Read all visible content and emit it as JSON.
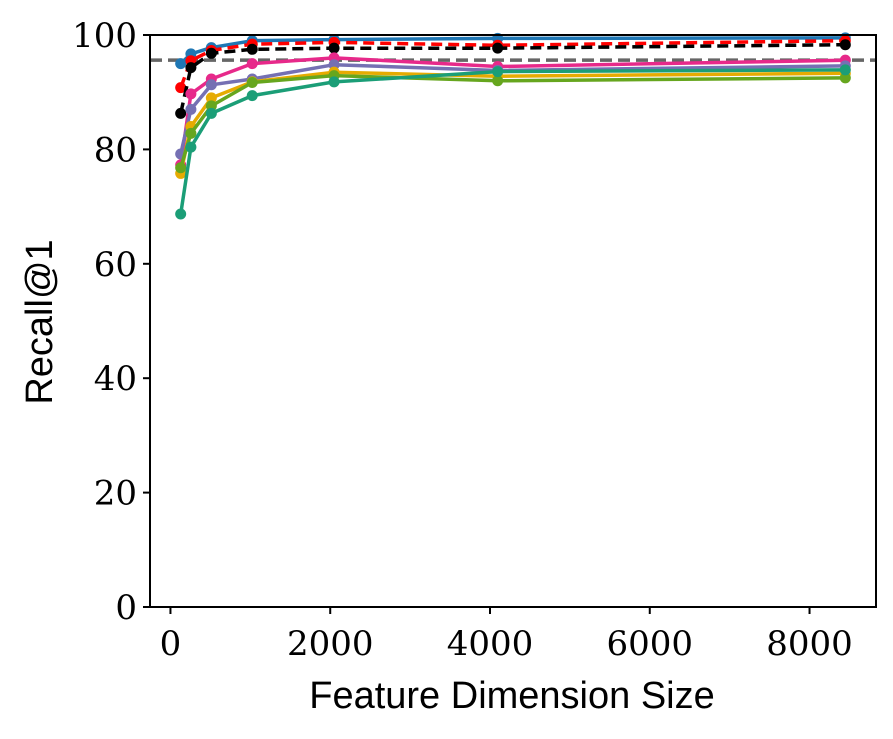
{
  "chart_data": {
    "type": "line",
    "title": "",
    "xlabel": "Feature Dimension Size",
    "ylabel": "Recall@1",
    "xlim": [
      -256,
      8832
    ],
    "ylim": [
      0,
      100
    ],
    "xticks": [
      0,
      2000,
      4000,
      6000,
      8000
    ],
    "yticks": [
      0,
      20,
      40,
      60,
      80,
      100
    ],
    "grid": false,
    "legend": "none",
    "reference_line": {
      "y": 95.6,
      "color": "#666666",
      "style": "dashed"
    },
    "series": [
      {
        "color": "#1f77b4",
        "style": "solid",
        "x": [
          128,
          256,
          512,
          1024,
          2048,
          4096,
          8448
        ],
        "y": [
          95.0,
          96.7,
          97.8,
          99.0,
          99.2,
          99.4,
          99.5
        ]
      },
      {
        "color": "#ff0000",
        "style": "dashed",
        "x": [
          128,
          256,
          512,
          1024,
          2048,
          4096,
          8448
        ],
        "y": [
          90.8,
          95.5,
          97.3,
          98.4,
          98.7,
          98.2,
          99.0
        ]
      },
      {
        "color": "#000000",
        "style": "dashed",
        "x": [
          128,
          256,
          512,
          1024,
          2048,
          4096,
          8448
        ],
        "y": [
          86.3,
          94.3,
          96.8,
          97.5,
          97.7,
          97.7,
          98.3
        ]
      },
      {
        "color": "#e7298a",
        "style": "solid",
        "x": [
          128,
          256,
          512,
          1024,
          2048,
          4096,
          8448
        ],
        "y": [
          77.3,
          89.7,
          92.3,
          95.0,
          96.0,
          94.5,
          95.6
        ]
      },
      {
        "color": "#7570b3",
        "style": "solid",
        "x": [
          128,
          256,
          512,
          1024,
          2048,
          4096,
          8448
        ],
        "y": [
          79.2,
          87.0,
          91.3,
          92.3,
          94.8,
          93.8,
          94.6
        ]
      },
      {
        "color": "#e6ab02",
        "style": "solid",
        "x": [
          128,
          256,
          512,
          1024,
          2048,
          4096,
          8448
        ],
        "y": [
          75.8,
          84.0,
          89.0,
          91.8,
          93.5,
          92.8,
          93.3
        ]
      },
      {
        "color": "#66a61e",
        "style": "solid",
        "x": [
          128,
          256,
          512,
          1024,
          2048,
          4096,
          8448
        ],
        "y": [
          76.8,
          82.8,
          87.6,
          91.7,
          92.9,
          92.0,
          92.5
        ]
      },
      {
        "color": "#1b9e77",
        "style": "solid",
        "x": [
          128,
          256,
          512,
          1024,
          2048,
          4096,
          8448
        ],
        "y": [
          68.7,
          80.4,
          86.3,
          89.4,
          91.8,
          93.6,
          93.9
        ]
      }
    ]
  }
}
